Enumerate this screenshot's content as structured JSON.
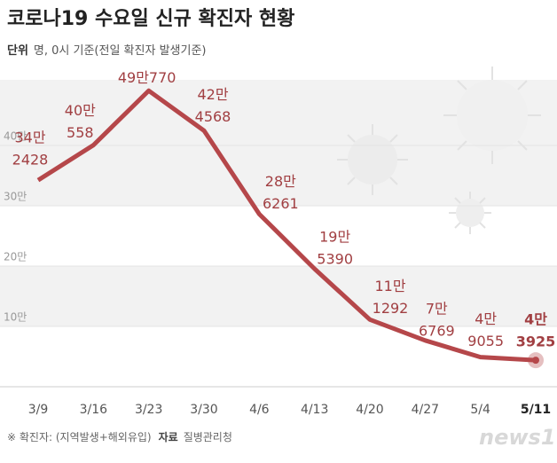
{
  "chart_data": {
    "type": "line",
    "title": "코로나19 수요일 신규 확진자 현황",
    "unit_label": "단위",
    "unit_text": "명, 0시 기준(전일 확진자 발생기준)",
    "categories": [
      "3/9",
      "3/16",
      "3/23",
      "3/30",
      "4/6",
      "4/13",
      "4/20",
      "4/27",
      "5/4",
      "5/11"
    ],
    "series": [
      {
        "name": "신규 확진자",
        "color": "#b5474a",
        "values": [
          342428,
          400558,
          490770,
          424568,
          286261,
          195390,
          111292,
          76769,
          49055,
          43925
        ]
      }
    ],
    "value_labels": [
      [
        "34만",
        "2428"
      ],
      [
        "40만",
        "558"
      ],
      [
        "49만770"
      ],
      [
        "42만",
        "4568"
      ],
      [
        "28만",
        "6261"
      ],
      [
        "19만",
        "5390"
      ],
      [
        "11만",
        "1292"
      ],
      [
        "7만",
        "6769"
      ],
      [
        "4만",
        "9055"
      ],
      [
        "4만",
        "3925"
      ]
    ],
    "ylim": [
      0,
      500000
    ],
    "yticks": [
      {
        "value": 100000,
        "label": "10만"
      },
      {
        "value": 200000,
        "label": "20만"
      },
      {
        "value": 300000,
        "label": "30만"
      },
      {
        "value": 400000,
        "label": "40만"
      }
    ],
    "note": "※ 확진자: (지역발생+해외유입)",
    "source_label": "자료",
    "source": "질병관리청",
    "logo": "news1"
  }
}
